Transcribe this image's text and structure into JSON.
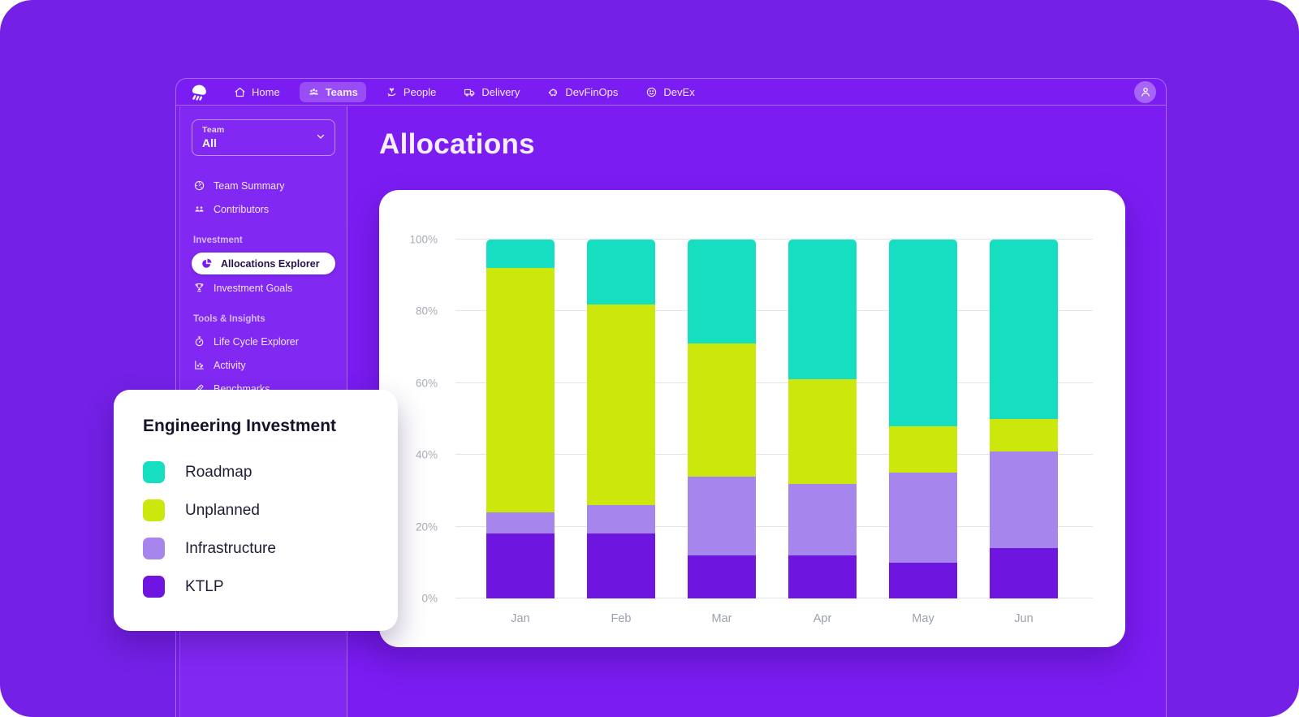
{
  "app": {
    "logo": "jellyfish"
  },
  "nav": {
    "items": [
      {
        "label": "Home"
      },
      {
        "label": "Teams",
        "active": true
      },
      {
        "label": "People"
      },
      {
        "label": "Delivery"
      },
      {
        "label": "DevFinOps"
      },
      {
        "label": "DevEx"
      }
    ]
  },
  "sidebar": {
    "team_selector": {
      "label": "Team",
      "value": "All"
    },
    "items": [
      {
        "label": "Team Summary"
      },
      {
        "label": "Contributors"
      }
    ],
    "sections": [
      {
        "title": "Investment",
        "items": [
          {
            "label": "Allocations Explorer",
            "active": true
          },
          {
            "label": "Investment Goals"
          }
        ]
      },
      {
        "title": "Tools & Insights",
        "items": [
          {
            "label": "Life Cycle Explorer"
          },
          {
            "label": "Activity"
          },
          {
            "label": "Benchmarks"
          }
        ]
      }
    ]
  },
  "main": {
    "title": "Allocations"
  },
  "legend_card": {
    "title": "Engineering Investment",
    "items": [
      {
        "label": "Roadmap",
        "color": "#16DEC1"
      },
      {
        "label": "Unplanned",
        "color": "#CBE70C"
      },
      {
        "label": "Infrastructure",
        "color": "#A685EC"
      },
      {
        "label": "KTLP",
        "color": "#6F15E0"
      }
    ]
  },
  "chart_data": {
    "type": "bar",
    "subtype": "stacked-100-percent",
    "title": "Allocations",
    "categories": [
      "Jan",
      "Feb",
      "Mar",
      "Apr",
      "May",
      "Jun"
    ],
    "unit": "%",
    "series": [
      {
        "name": "KTLP",
        "color": "#6F15E0",
        "values": [
          18,
          18,
          12,
          12,
          10,
          14
        ]
      },
      {
        "name": "Infrastructure",
        "color": "#A685EC",
        "values": [
          6,
          8,
          22,
          20,
          25,
          27
        ]
      },
      {
        "name": "Unplanned",
        "color": "#CBE70C",
        "values": [
          68,
          56,
          37,
          29,
          13,
          9
        ]
      },
      {
        "name": "Roadmap",
        "color": "#16DEC1",
        "values": [
          8,
          18,
          29,
          39,
          52,
          50
        ]
      }
    ],
    "yticks": [
      "0%",
      "20%",
      "40%",
      "60%",
      "80%",
      "100%"
    ],
    "ylim": [
      0,
      100
    ],
    "grid": true,
    "legend_position": "floating-card-left"
  },
  "colors": {
    "background": "#7420E6",
    "window": "#7B1CF3",
    "card": "#FFFFFF",
    "nav_active_pill": "rgba(255,255,255,0.22)",
    "axis_text": "#A8ADB6"
  }
}
